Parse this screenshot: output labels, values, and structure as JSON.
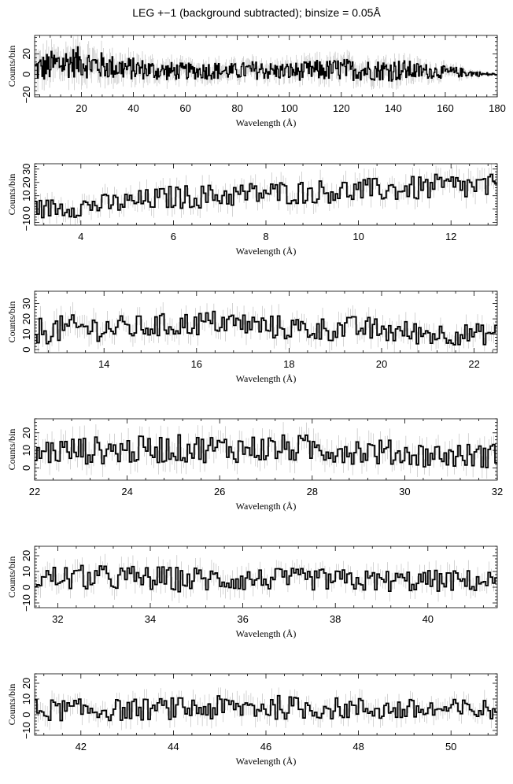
{
  "title": "LEG +−1 (background subtracted); binsize = 0.05Å",
  "chart_data": [
    {
      "type": "line",
      "xlabel": "Wavelength (Å)",
      "ylabel": "Counts/bin",
      "xlim": [
        2,
        180
      ],
      "ylim": [
        -22,
        38
      ],
      "xticks": [
        "20",
        "40",
        "60",
        "80",
        "100",
        "120",
        "140",
        "160",
        "180"
      ],
      "yticks": [
        "−20",
        "0",
        "20"
      ],
      "series": [
        {
          "x": [
            2,
            5,
            8,
            11,
            14,
            17,
            20,
            23,
            26,
            29,
            32,
            35,
            38,
            41,
            44,
            47,
            50,
            55,
            60,
            65,
            70,
            75,
            80,
            85,
            90,
            95,
            100,
            105,
            110,
            115,
            120,
            125,
            130,
            135,
            140,
            145,
            150,
            155,
            160,
            165,
            170,
            175,
            180
          ],
          "y": [
            5,
            6,
            8,
            10,
            11,
            12,
            12,
            10,
            9,
            8,
            7,
            6,
            6,
            5,
            5,
            4,
            3,
            3,
            3,
            3,
            4,
            3,
            3,
            4,
            4,
            3,
            3,
            3,
            4,
            4,
            5,
            4,
            4,
            4,
            4,
            4,
            3,
            3,
            2,
            2,
            1,
            0,
            0
          ],
          "spread": [
            14,
            14,
            15,
            15,
            15,
            15,
            15,
            14,
            14,
            13,
            12,
            12,
            11,
            11,
            10,
            10,
            9,
            9,
            8,
            8,
            9,
            8,
            8,
            9,
            9,
            8,
            9,
            9,
            10,
            10,
            11,
            10,
            10,
            10,
            11,
            10,
            8,
            7,
            6,
            5,
            3,
            2,
            1
          ]
        }
      ]
    },
    {
      "type": "line",
      "xlabel": "Wavelength (Å)",
      "ylabel": "Counts/bin",
      "xlim": [
        3,
        13
      ],
      "ylim": [
        -12,
        34
      ],
      "xticks": [
        "4",
        "6",
        "8",
        "10",
        "12"
      ],
      "yticks": [
        "−10",
        "0",
        "10",
        "20",
        "30"
      ],
      "series": [
        {
          "x": [
            3,
            4,
            5,
            6,
            7,
            8,
            9,
            10,
            11,
            12,
            13
          ],
          "y": [
            0,
            2,
            5,
            9,
            10,
            12,
            13,
            14,
            15,
            17,
            16
          ],
          "spread": [
            7,
            8,
            8,
            9,
            9,
            9,
            9,
            9,
            9,
            10,
            10
          ]
        }
      ]
    },
    {
      "type": "line",
      "xlabel": "Wavelength (Å)",
      "ylabel": "Counts/bin",
      "xlim": [
        12.5,
        22.5
      ],
      "ylim": [
        -2,
        38
      ],
      "xticks": [
        "14",
        "16",
        "18",
        "20",
        "22"
      ],
      "yticks": [
        "0",
        "10",
        "20",
        "30"
      ],
      "series": [
        {
          "x": [
            12.5,
            13.5,
            14.5,
            15.5,
            16.5,
            17.5,
            18.5,
            19.5,
            20.5,
            21.5,
            22.5
          ],
          "y": [
            12,
            14,
            14,
            16,
            18,
            15,
            13,
            14,
            11,
            10,
            10
          ],
          "spread": [
            9,
            9,
            8,
            8,
            8,
            8,
            8,
            8,
            8,
            7,
            7
          ]
        }
      ]
    },
    {
      "type": "line",
      "xlabel": "Wavelength (Å)",
      "ylabel": "Counts/bin",
      "xlim": [
        22,
        32
      ],
      "ylim": [
        -7,
        28
      ],
      "xticks": [
        "22",
        "24",
        "26",
        "28",
        "30",
        "32"
      ],
      "yticks": [
        "0",
        "10",
        "20"
      ],
      "series": [
        {
          "x": [
            22,
            23,
            24,
            25,
            26,
            27,
            28,
            29,
            30,
            31,
            32
          ],
          "y": [
            9,
            10,
            10,
            11,
            11,
            11,
            11,
            10,
            8,
            7,
            7
          ],
          "spread": [
            8,
            8,
            8,
            8,
            8,
            8,
            8,
            8,
            7,
            7,
            7
          ]
        }
      ]
    },
    {
      "type": "line",
      "xlabel": "Wavelength (Å)",
      "ylabel": "Counts/bin",
      "xlim": [
        31.5,
        41.5
      ],
      "ylim": [
        -13,
        26
      ],
      "xticks": [
        "32",
        "34",
        "36",
        "38",
        "40"
      ],
      "yticks": [
        "−10",
        "0",
        "10",
        "20"
      ],
      "series": [
        {
          "x": [
            31.5,
            32.5,
            33.5,
            34.5,
            35.5,
            36.5,
            37.5,
            38.5,
            39.5,
            40.5,
            41.5
          ],
          "y": [
            6,
            6,
            6,
            5,
            5,
            5,
            5,
            4,
            4,
            4,
            4
          ],
          "spread": [
            8,
            8,
            8,
            8,
            8,
            7,
            7,
            7,
            7,
            7,
            7
          ]
        }
      ]
    },
    {
      "type": "line",
      "xlabel": "Wavelength (Å)",
      "ylabel": "Counts/bin",
      "xlim": [
        41,
        51
      ],
      "ylim": [
        -13,
        26
      ],
      "xticks": [
        "42",
        "44",
        "46",
        "48",
        "50"
      ],
      "yticks": [
        "−10",
        "0",
        "10",
        "20"
      ],
      "series": [
        {
          "x": [
            41,
            42,
            43,
            44,
            45,
            46,
            47,
            48,
            49,
            50,
            51
          ],
          "y": [
            3,
            3,
            3,
            4,
            4,
            5,
            4,
            4,
            3,
            3,
            3
          ],
          "spread": [
            7,
            7,
            7,
            7,
            8,
            8,
            7,
            7,
            7,
            7,
            7
          ]
        }
      ]
    }
  ]
}
